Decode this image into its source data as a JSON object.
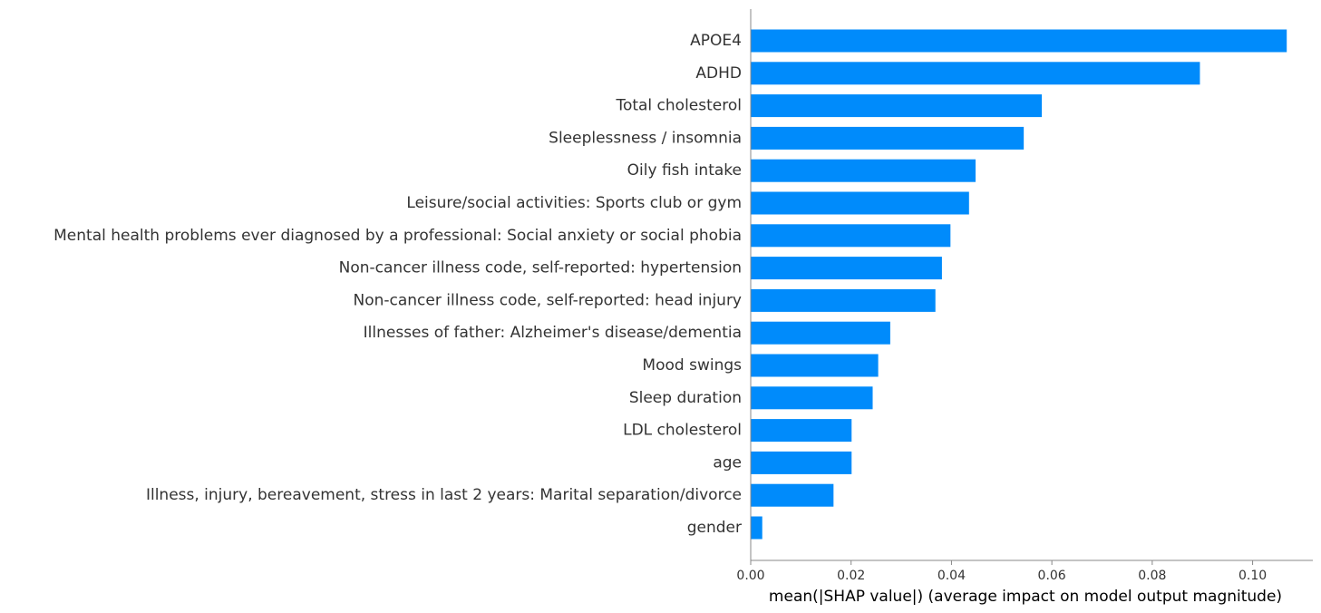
{
  "chart_data": {
    "type": "bar",
    "orientation": "horizontal",
    "categories": [
      "APOE4",
      "ADHD",
      "Total cholesterol",
      "Sleeplessness / insomnia",
      "Oily fish intake",
      "Leisure/social activities: Sports club or gym",
      "Mental health problems ever diagnosed by a professional: Social anxiety or social phobia",
      "Non-cancer illness code, self-reported: hypertension",
      "Non-cancer illness code, self-reported: head injury",
      "Illnesses of father: Alzheimer's disease/dementia",
      "Mood swings",
      "Sleep duration",
      "LDL cholesterol",
      "age",
      "Illness, injury, bereavement, stress in last 2 years: Marital separation/divorce",
      "gender"
    ],
    "values": [
      0.1068,
      0.0895,
      0.058,
      0.0544,
      0.0448,
      0.0435,
      0.0398,
      0.0381,
      0.0368,
      0.0278,
      0.0254,
      0.0243,
      0.0201,
      0.0201,
      0.0165,
      0.0023
    ],
    "xlim": [
      0.0,
      0.112
    ],
    "xticks": [
      0.0,
      0.02,
      0.04,
      0.06,
      0.08,
      0.1
    ],
    "xtick_labels": [
      "0.00",
      "0.02",
      "0.04",
      "0.06",
      "0.08",
      "0.10"
    ],
    "xlabel": "mean(|SHAP value|) (average impact on model output magnitude)",
    "ylabel": "",
    "title": "",
    "grid": false,
    "bar_color": "#008bfb"
  }
}
